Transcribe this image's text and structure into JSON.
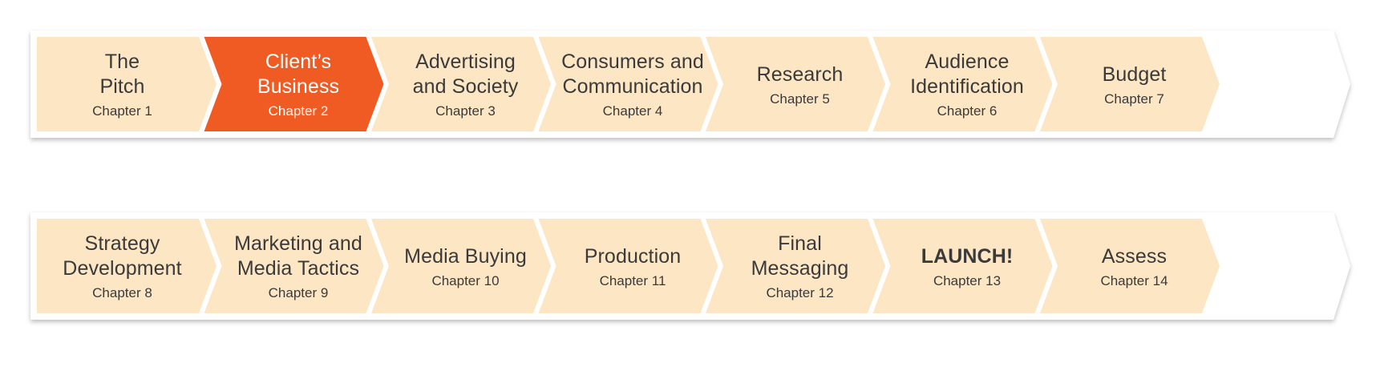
{
  "colors": {
    "chevron_fill": "#fce6c4",
    "chevron_active_fill": "#f05a23",
    "band_fill": "#ffffff",
    "band_shadow": "#9a9a9a",
    "text": "#3a3a3a",
    "active_text": "#ffffff"
  },
  "rows": [
    {
      "steps": [
        {
          "title": "The\nPitch",
          "chapter": "Chapter 1",
          "active": false,
          "bold": false
        },
        {
          "title": "Client’s\nBusiness",
          "chapter": "Chapter 2",
          "active": true,
          "bold": false
        },
        {
          "title": "Advertising\nand Society",
          "chapter": "Chapter 3",
          "active": false,
          "bold": false
        },
        {
          "title": "Consumers and\nCommunication",
          "chapter": "Chapter 4",
          "active": false,
          "bold": false
        },
        {
          "title": "Research",
          "chapter": "Chapter 5",
          "active": false,
          "bold": false
        },
        {
          "title": "Audience\nIdentification",
          "chapter": "Chapter 6",
          "active": false,
          "bold": false
        },
        {
          "title": "Budget",
          "chapter": "Chapter 7",
          "active": false,
          "bold": false
        }
      ]
    },
    {
      "steps": [
        {
          "title": "Strategy\nDevelopment",
          "chapter": "Chapter 8",
          "active": false,
          "bold": false
        },
        {
          "title": "Marketing and\nMedia Tactics",
          "chapter": "Chapter 9",
          "active": false,
          "bold": false
        },
        {
          "title": "Media Buying",
          "chapter": "Chapter 10",
          "active": false,
          "bold": false
        },
        {
          "title": "Production",
          "chapter": "Chapter 11",
          "active": false,
          "bold": false
        },
        {
          "title": "Final\nMessaging",
          "chapter": "Chapter 12",
          "active": false,
          "bold": false
        },
        {
          "title": "LAUNCH!",
          "chapter": "Chapter 13",
          "active": false,
          "bold": true
        },
        {
          "title": "Assess",
          "chapter": "Chapter 14",
          "active": false,
          "bold": false
        }
      ]
    }
  ]
}
